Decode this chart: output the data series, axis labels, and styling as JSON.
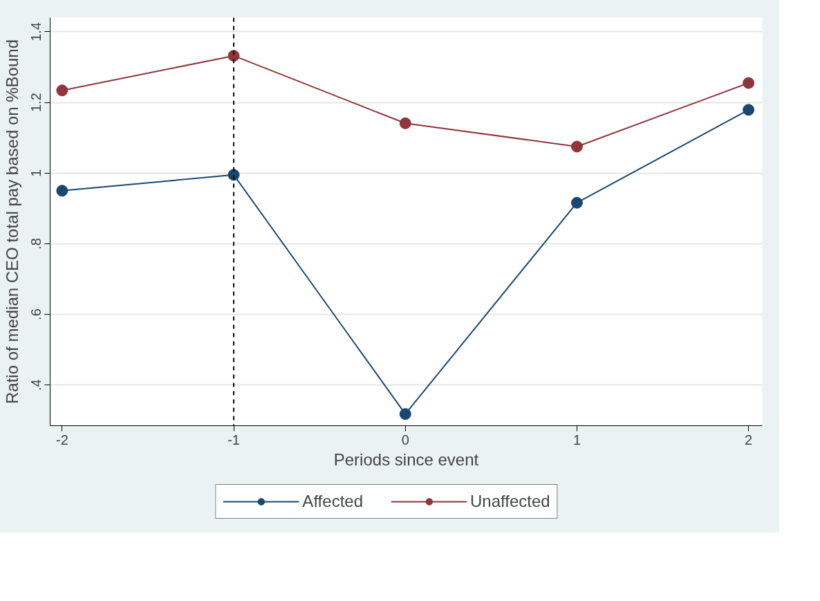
{
  "chart_data": {
    "type": "line",
    "xlabel": "Periods since event",
    "ylabel": "Ratio of median CEO total pay based on %Bound",
    "x": [
      -2,
      -1,
      0,
      1,
      2
    ],
    "series": [
      {
        "name": "Affected",
        "color": "#1a476f",
        "values": [
          0.95,
          0.995,
          0.318,
          0.916,
          1.179
        ]
      },
      {
        "name": "Unaffected",
        "color": "#90353b",
        "values": [
          1.234,
          1.332,
          1.141,
          1.075,
          1.255
        ]
      }
    ],
    "xlim": [
      -2.07,
      2.08
    ],
    "ylim": [
      0.285,
      1.44
    ],
    "xticks": [
      -2,
      -1,
      0,
      1,
      2
    ],
    "yticks": [
      {
        "value": 0.4,
        "label": ".4"
      },
      {
        "value": 0.6,
        "label": ".6"
      },
      {
        "value": 0.8,
        "label": ".8"
      },
      {
        "value": 1,
        "label": "1"
      },
      {
        "value": 1.2,
        "label": "1.2"
      },
      {
        "value": 1.4,
        "label": "1.4"
      }
    ],
    "ref_lines": [
      {
        "axis": "x",
        "value": -1,
        "color": "#000000",
        "line_style": "dashed"
      }
    ],
    "grid": "y",
    "legend": "bottom",
    "marker": "circle",
    "line_style": "solid"
  }
}
